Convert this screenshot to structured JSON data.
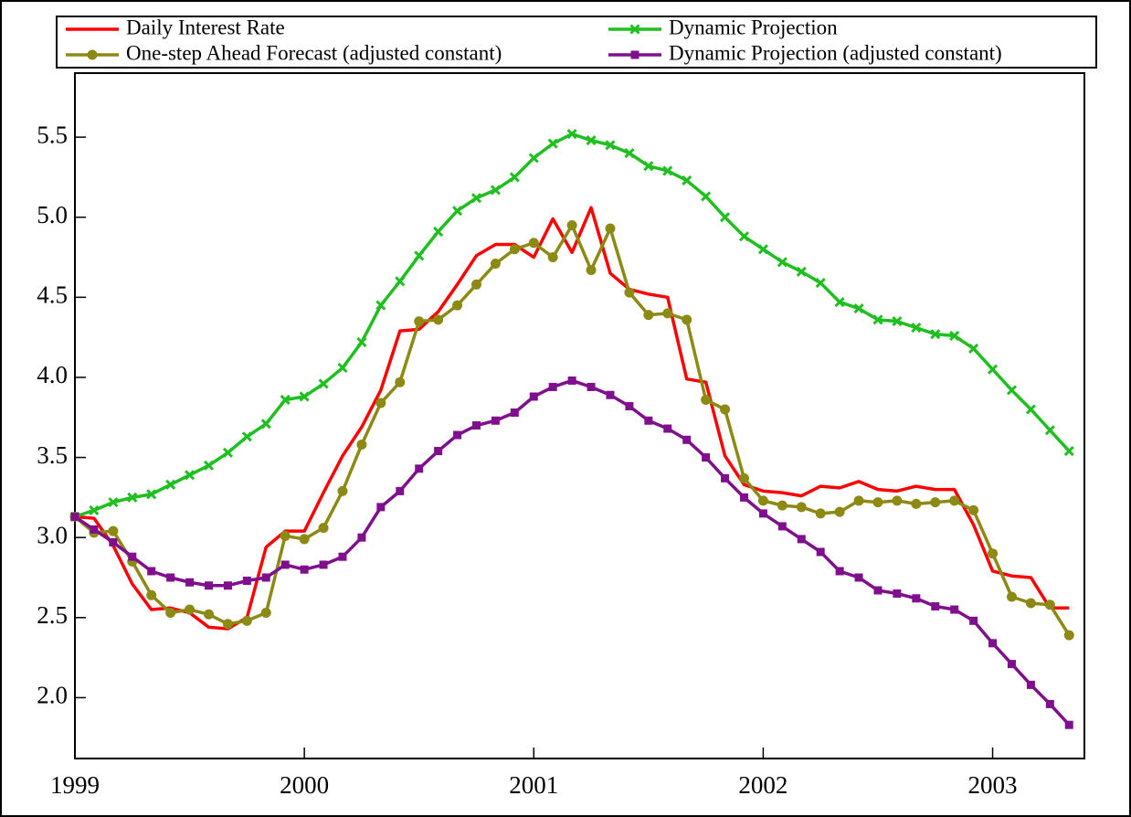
{
  "chart_data": {
    "type": "line",
    "x": [
      1999,
      1999.0833,
      1999.1667,
      1999.25,
      1999.3333,
      1999.4167,
      1999.5,
      1999.5833,
      1999.6667,
      1999.75,
      1999.8333,
      1999.9167,
      2000,
      2000.0833,
      2000.1667,
      2000.25,
      2000.3333,
      2000.4167,
      2000.5,
      2000.5833,
      2000.6667,
      2000.75,
      2000.8333,
      2000.9167,
      2001,
      2001.0833,
      2001.1667,
      2001.25,
      2001.3333,
      2001.4167,
      2001.5,
      2001.5833,
      2001.6667,
      2001.75,
      2001.8333,
      2001.9167,
      2002,
      2002.0833,
      2002.1667,
      2002.25,
      2002.3333,
      2002.4167,
      2002.5,
      2002.5833,
      2002.6667,
      2002.75,
      2002.8333,
      2002.9167,
      2003,
      2003.0833,
      2003.1667,
      2003.25,
      2003.3333
    ],
    "series": [
      {
        "name": "Daily Interest Rate",
        "color": "#ff0000",
        "values": [
          3.13,
          3.12,
          2.95,
          2.71,
          2.55,
          2.56,
          2.53,
          2.44,
          2.43,
          2.5,
          2.94,
          3.04,
          3.04,
          3.28,
          3.51,
          3.69,
          3.92,
          4.29,
          4.3,
          4.41,
          4.58,
          4.76,
          4.83,
          4.83,
          4.75,
          4.99,
          4.78,
          5.06,
          4.65,
          4.55,
          4.52,
          4.5,
          3.99,
          3.97,
          3.51,
          3.33,
          3.29,
          3.28,
          3.26,
          3.32,
          3.31,
          3.35,
          3.3,
          3.29,
          3.32,
          3.3,
          3.3,
          3.08,
          2.79,
          2.76,
          2.75,
          2.56,
          2.56
        ]
      },
      {
        "name": "Dynamic Projection",
        "color": "#1fbf1f",
        "marker": "x",
        "values": [
          3.13,
          3.17,
          3.22,
          3.25,
          3.27,
          3.33,
          3.39,
          3.45,
          3.53,
          3.63,
          3.71,
          3.86,
          3.88,
          3.96,
          4.06,
          4.22,
          4.45,
          4.6,
          4.76,
          4.91,
          5.04,
          5.12,
          5.17,
          5.25,
          5.37,
          5.46,
          5.52,
          5.48,
          5.45,
          5.4,
          5.32,
          5.29,
          5.23,
          5.13,
          5.0,
          4.88,
          4.8,
          4.72,
          4.66,
          4.59,
          4.47,
          4.43,
          4.36,
          4.35,
          4.31,
          4.27,
          4.26,
          4.18,
          4.05,
          3.92,
          3.8,
          3.67,
          3.54
        ]
      },
      {
        "name": "One-step Ahead Forecast (adjusted constant)",
        "color": "#8c8a14",
        "marker": "circle",
        "values": [
          3.13,
          3.03,
          3.04,
          2.85,
          2.64,
          2.53,
          2.55,
          2.52,
          2.46,
          2.48,
          2.53,
          3.01,
          2.99,
          3.06,
          3.29,
          3.58,
          3.84,
          3.97,
          4.35,
          4.36,
          4.45,
          4.58,
          4.71,
          4.8,
          4.84,
          4.75,
          4.95,
          4.67,
          4.93,
          4.53,
          4.39,
          4.4,
          4.36,
          3.86,
          3.8,
          3.37,
          3.23,
          3.2,
          3.19,
          3.15,
          3.16,
          3.23,
          3.22,
          3.23,
          3.21,
          3.22,
          3.23,
          3.17,
          2.9,
          2.63,
          2.59,
          2.58,
          2.39
        ]
      },
      {
        "name": "Dynamic Projection (adjusted constant)",
        "color": "#7f0f8c",
        "marker": "square",
        "values": [
          3.13,
          3.05,
          2.97,
          2.88,
          2.79,
          2.75,
          2.72,
          2.7,
          2.7,
          2.73,
          2.75,
          2.83,
          2.8,
          2.83,
          2.88,
          3.0,
          3.19,
          3.29,
          3.43,
          3.54,
          3.64,
          3.7,
          3.73,
          3.78,
          3.88,
          3.94,
          3.98,
          3.94,
          3.89,
          3.82,
          3.73,
          3.68,
          3.61,
          3.5,
          3.37,
          3.25,
          3.15,
          3.07,
          2.99,
          2.91,
          2.79,
          2.75,
          2.67,
          2.65,
          2.62,
          2.57,
          2.55,
          2.48,
          2.34,
          2.21,
          2.08,
          1.96,
          1.83
        ]
      }
    ],
    "xlim": [
      1999,
      2003.4
    ],
    "xticks": [
      1999,
      2000,
      2001,
      2002,
      2003
    ],
    "ylim": [
      1.62,
      5.9
    ],
    "yticks": [
      {
        "value": 2,
        "label": "2.0"
      },
      {
        "value": 2.5,
        "label": "2.5"
      },
      {
        "value": 3,
        "label": "3.0"
      },
      {
        "value": 3.5,
        "label": "3.5"
      },
      {
        "value": 4,
        "label": "4.0"
      },
      {
        "value": 4.5,
        "label": "4.5"
      },
      {
        "value": 5,
        "label": "5.0"
      },
      {
        "value": 5.5,
        "label": "5.5"
      }
    ],
    "legend": "top"
  }
}
